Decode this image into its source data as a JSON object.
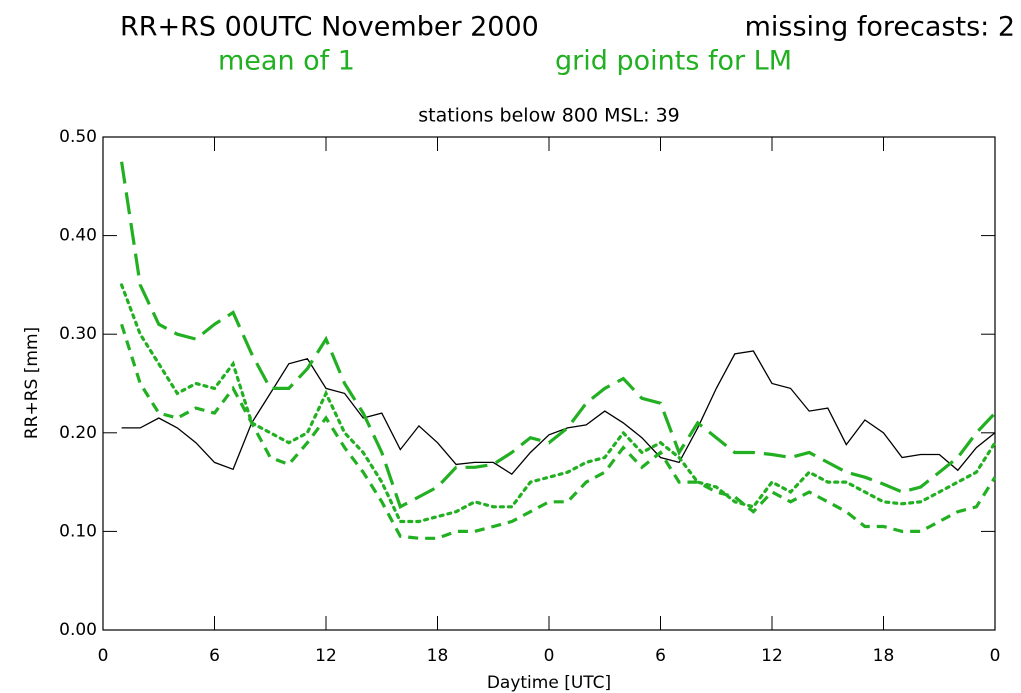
{
  "chart_data": {
    "type": "line",
    "title": "RR+RS 00UTC  November 2000",
    "missing": "missing forecasts: 2",
    "mean_of": "mean of 1",
    "grid_points": "grid points for LM",
    "subtitle": "stations below 800 MSL: 39",
    "x_label": "Daytime [UTC]",
    "y_label": "RR+RS [mm]",
    "x": [
      1,
      2,
      3,
      4,
      5,
      6,
      7,
      8,
      9,
      10,
      11,
      12,
      13,
      14,
      15,
      16,
      17,
      18,
      19,
      20,
      21,
      22,
      23,
      24,
      25,
      26,
      27,
      28,
      29,
      30,
      31,
      32,
      33,
      34,
      35,
      36,
      37,
      38,
      39,
      40,
      41,
      42,
      43,
      44,
      45,
      46,
      47,
      48
    ],
    "series": [
      {
        "color": "#000000",
        "dash": "solid",
        "values": [
          0.205,
          0.205,
          0.215,
          0.205,
          0.19,
          0.17,
          0.163,
          0.21,
          0.24,
          0.27,
          0.275,
          0.245,
          0.24,
          0.215,
          0.22,
          0.183,
          0.207,
          0.19,
          0.168,
          0.17,
          0.17,
          0.158,
          0.18,
          0.198,
          0.205,
          0.208,
          0.222,
          0.21,
          0.195,
          0.175,
          0.17,
          0.205,
          0.245,
          0.28,
          0.283,
          0.25,
          0.245,
          0.222,
          0.225,
          0.188,
          0.213,
          0.2,
          0.175,
          0.178,
          0.178,
          0.162,
          0.185,
          0.2
        ]
      },
      {
        "color": "#22b022",
        "dash": "long",
        "values": [
          0.475,
          0.35,
          0.31,
          0.3,
          0.295,
          0.31,
          0.322,
          0.28,
          0.245,
          0.245,
          0.265,
          0.295,
          0.25,
          0.22,
          0.18,
          0.125,
          0.135,
          0.145,
          0.165,
          0.165,
          0.168,
          0.18,
          0.195,
          0.19,
          0.205,
          0.23,
          0.245,
          0.255,
          0.235,
          0.23,
          0.18,
          0.21,
          0.195,
          0.18,
          0.18,
          0.178,
          0.175,
          0.18,
          0.17,
          0.16,
          0.155,
          0.148,
          0.14,
          0.145,
          0.16,
          0.175,
          0.2,
          0.22
        ]
      },
      {
        "color": "#22b022",
        "dash": "dotted",
        "values": [
          0.35,
          0.3,
          0.27,
          0.24,
          0.25,
          0.245,
          0.27,
          0.21,
          0.2,
          0.19,
          0.2,
          0.24,
          0.2,
          0.18,
          0.15,
          0.11,
          0.11,
          0.115,
          0.12,
          0.13,
          0.125,
          0.125,
          0.15,
          0.155,
          0.16,
          0.17,
          0.175,
          0.2,
          0.18,
          0.19,
          0.175,
          0.15,
          0.145,
          0.13,
          0.125,
          0.15,
          0.14,
          0.16,
          0.15,
          0.15,
          0.14,
          0.13,
          0.128,
          0.13,
          0.14,
          0.15,
          0.16,
          0.19
        ]
      },
      {
        "color": "#22b022",
        "dash": "short",
        "values": [
          0.31,
          0.25,
          0.22,
          0.215,
          0.225,
          0.22,
          0.245,
          0.21,
          0.175,
          0.168,
          0.19,
          0.215,
          0.185,
          0.16,
          0.13,
          0.095,
          0.093,
          0.093,
          0.1,
          0.1,
          0.105,
          0.11,
          0.12,
          0.13,
          0.13,
          0.15,
          0.16,
          0.185,
          0.165,
          0.18,
          0.15,
          0.15,
          0.14,
          0.135,
          0.12,
          0.14,
          0.13,
          0.14,
          0.13,
          0.12,
          0.105,
          0.105,
          0.1,
          0.1,
          0.11,
          0.12,
          0.125,
          0.155
        ]
      }
    ],
    "xlim": [
      0,
      48
    ],
    "xticks": [
      0,
      6,
      12,
      18,
      {
        "value": 24,
        "label": "0"
      },
      {
        "value": 30,
        "label": "6"
      },
      {
        "value": 36,
        "label": "12"
      },
      {
        "value": 42,
        "label": "18"
      },
      {
        "value": 48,
        "label": "0"
      }
    ],
    "ylim": [
      0,
      0.5
    ],
    "yticks": [
      {
        "value": 0,
        "label": "0.00"
      },
      {
        "value": 0.1,
        "label": "0.10"
      },
      {
        "value": 0.2,
        "label": "0.20"
      },
      {
        "value": 0.3,
        "label": "0.30"
      },
      {
        "value": 0.4,
        "label": "0.40"
      },
      {
        "value": 0.5,
        "label": "0.50"
      }
    ]
  }
}
